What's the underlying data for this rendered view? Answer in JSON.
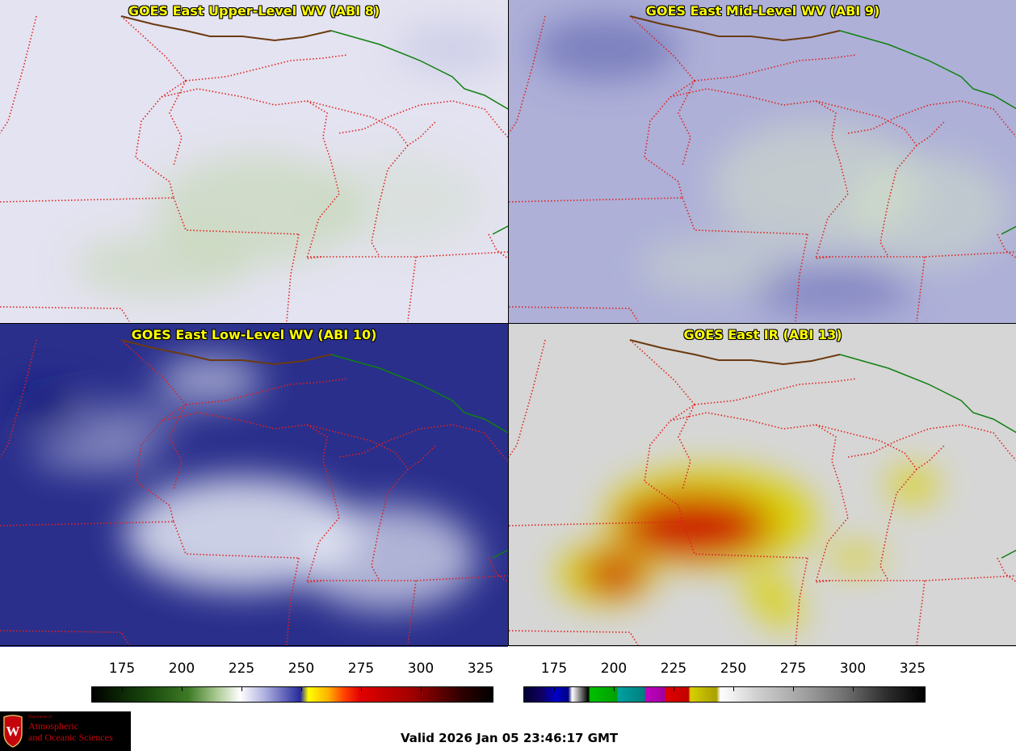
{
  "panels": [
    {
      "title": "GOES East Upper-Level WV (ABI 8)",
      "base": "#e4e3f1",
      "tint": "#bfd6a8",
      "dark": "#b9bcdf"
    },
    {
      "title": "GOES East Mid-Level WV (ABI 9)",
      "base": "#aeb0d8",
      "tint": "#d8e6c6",
      "dark": "#5c5fae"
    },
    {
      "title": "GOES East Low-Level WV (ABI 10)",
      "base": "#2a2f8c",
      "tint": "#e8ebf5",
      "dark": "#12167a"
    },
    {
      "title": "GOES East IR (ABI 13)",
      "base": "#d6d6d6",
      "tint": "#d9d100",
      "dark": "#cc0000"
    }
  ],
  "colorbars": [
    {
      "ticks": [
        "175",
        "200",
        "225",
        "250",
        "275",
        "300",
        "325"
      ]
    },
    {
      "ticks": [
        "175",
        "200",
        "225",
        "250",
        "275",
        "300",
        "325"
      ]
    }
  ],
  "logo": {
    "department": "Department of",
    "line1": "Atmospheric",
    "line2": "and Oceanic Sciences",
    "shield_letter": "W"
  },
  "valid_time": "Valid 2026 Jan 05 23:46:17 GMT",
  "colors": {
    "border_dotted": "#e0201c",
    "us_canada_border": "#6b3a10",
    "province_line": "#108010",
    "title_text": "#ffff00"
  }
}
